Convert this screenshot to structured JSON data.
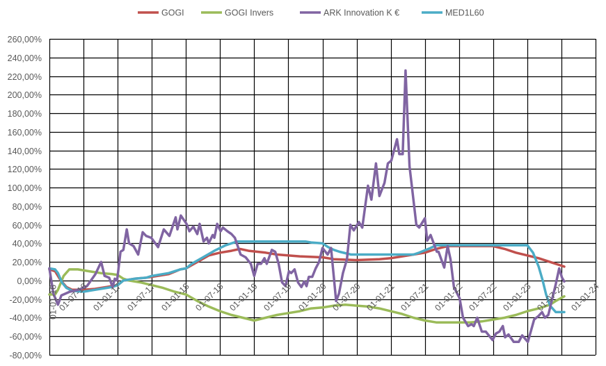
{
  "chart_data": {
    "type": "line",
    "title": "",
    "xlabel": "",
    "ylabel": "",
    "x_unit": "months since 01-01-16",
    "xlim": [
      0,
      96
    ],
    "ylim": [
      -80,
      260
    ],
    "y_step": 20,
    "grid": true,
    "legend_position": "top",
    "x_tick_labels": [
      "01-01-16",
      "01-07-16",
      "01-01-17",
      "01-07-17",
      "01-01-18",
      "01-07-18",
      "01-01-19",
      "01-07-19",
      "01-01-20",
      "01-07-20",
      "01-01-21",
      "01-07-21",
      "01-01-22",
      "01-07-22",
      "01-01-23",
      "01-07-23",
      "01-01-24"
    ],
    "y_tick_labels": [
      "260,00%",
      "240,00%",
      "220,00%",
      "200,00%",
      "180,00%",
      "160,00%",
      "140,00%",
      "120,00%",
      "100,00%",
      "80,00%",
      "60,00%",
      "40,00%",
      "20,00%",
      "0,00%",
      "-20,00%",
      "-40,00%",
      "-60,00%",
      "-80,00%"
    ],
    "series": [
      {
        "name": "GOGI",
        "color": "#C0504D",
        "x": [
          0,
          1,
          2,
          3,
          4,
          6,
          8,
          10,
          12,
          13,
          15,
          17,
          19,
          21,
          23,
          24,
          26,
          28,
          30,
          32,
          33.5,
          35,
          38,
          40,
          44,
          48,
          50,
          54,
          58,
          60,
          62,
          64,
          66,
          68,
          70,
          72,
          78,
          80,
          82,
          84,
          86,
          88,
          90,
          90.5
        ],
        "y": [
          12,
          10,
          0,
          -7,
          -10,
          -10,
          -9,
          -7,
          -5,
          0,
          2,
          3,
          5,
          7,
          12,
          13,
          20,
          27,
          30,
          32,
          34,
          32,
          30,
          28,
          26,
          25,
          23,
          22,
          23,
          24,
          26,
          28,
          30,
          34,
          37,
          37,
          37,
          34,
          30,
          27,
          24,
          20,
          16,
          15
        ]
      },
      {
        "name": "GOGI Invers",
        "color": "#9BBB59",
        "x": [
          0,
          1,
          1.5,
          2.5,
          3.5,
          5,
          7,
          9,
          11,
          12,
          13,
          14,
          16,
          18,
          20,
          22,
          24,
          26,
          28,
          30,
          32,
          34,
          36,
          38,
          40,
          42,
          44,
          46,
          48,
          50,
          52,
          54,
          56,
          58,
          60,
          62,
          64,
          66,
          68,
          72,
          74,
          76,
          78,
          80,
          82,
          84,
          86,
          88,
          89,
          90.5
        ],
        "y": [
          -15,
          -15,
          -10,
          5,
          12,
          12,
          10,
          8,
          7,
          6,
          2,
          0,
          -2,
          -5,
          -8,
          -12,
          -15,
          -22,
          -28,
          -33,
          -37,
          -40,
          -43,
          -40,
          -37,
          -35,
          -33,
          -30,
          -29,
          -27,
          -26,
          -27,
          -28,
          -30,
          -33,
          -36,
          -40,
          -43,
          -45,
          -45,
          -45,
          -44,
          -42,
          -40,
          -37,
          -33,
          -30,
          -26,
          -22,
          -17
        ]
      },
      {
        "name": "ARK Innovation K €",
        "color": "#8064A2",
        "x": [
          0,
          0.7,
          1.5,
          2.1,
          3.6,
          5.1,
          6.6,
          8.1,
          9.1,
          9.7,
          10.5,
          11.1,
          11.5,
          11.9,
          12.5,
          13.0,
          13.6,
          14.0,
          14.8,
          15.6,
          16.4,
          17.0,
          17.9,
          19.1,
          20.1,
          21.1,
          22.2,
          22.5,
          23.1,
          24.1,
          24.6,
          25.3,
          26.0,
          26.4,
          27.1,
          27.7,
          28.0,
          28.7,
          29.0,
          29.5,
          30.1,
          30.5,
          31.3,
          32.0,
          32.6,
          33.6,
          34.5,
          35.4,
          36.0,
          36.6,
          37.2,
          37.8,
          38.2,
          39.1,
          39.7,
          40.3,
          40.9,
          41.5,
          42.1,
          42.5,
          43.1,
          43.7,
          44.3,
          44.8,
          45.2,
          45.6,
          46.2,
          46.8,
          47.4,
          48.0,
          48.9,
          49.5,
          50.4,
          50.9,
          51.6,
          52.3,
          52.9,
          53.5,
          54.4,
          55.0,
          56.0,
          56.6,
          57.4,
          58.0,
          58.9,
          59.5,
          60.1,
          61.1,
          61.5,
          62.1,
          62.6,
          63.3,
          64.5,
          65.0,
          66.0,
          66.4,
          67.0,
          68.1,
          68.4,
          69.4,
          70.0,
          70.5,
          71.1,
          72.1,
          72.7,
          73.6,
          74.2,
          74.6,
          75.2,
          76.0,
          76.7,
          77.9,
          78.5,
          79.1,
          79.7,
          80.1,
          80.7,
          81.6,
          82.5,
          83.1,
          84.1,
          85.2,
          86.0,
          86.6,
          87.1,
          87.7,
          88.4,
          89.0,
          89.6,
          90.1,
          90.5
        ],
        "y": [
          13,
          -14,
          -26,
          -16,
          -12,
          -10,
          -6,
          7,
          20,
          5,
          3,
          -7,
          2,
          0,
          31,
          33,
          55,
          40,
          37,
          28,
          52,
          48,
          46,
          36,
          55,
          48,
          68,
          55,
          70,
          61,
          53,
          58,
          50,
          61,
          42,
          46,
          40,
          49,
          46,
          61,
          53,
          57,
          53,
          50,
          46,
          28,
          25,
          18,
          5,
          18,
          18,
          24,
          18,
          33,
          31,
          18,
          -2,
          -6,
          10,
          8,
          12,
          -2,
          -7,
          -1,
          -6,
          4,
          4,
          13,
          20,
          35,
          28,
          35,
          -22,
          -14,
          8,
          23,
          60,
          54,
          63,
          57,
          102,
          87,
          126,
          91,
          105,
          126,
          129,
          152,
          136,
          136,
          226,
          123,
          60,
          57,
          67,
          43,
          49,
          31,
          31,
          14,
          37,
          23,
          -7,
          -19,
          -40,
          -49,
          -47,
          -49,
          -40,
          -55,
          -55,
          -64,
          -57,
          -55,
          -49,
          -61,
          -58,
          -66,
          -66,
          -59,
          -66,
          -42,
          -38,
          -34,
          -40,
          -37,
          -19,
          -4,
          13,
          3,
          -1
        ]
      },
      {
        "name": "MED1L60",
        "color": "#4BACC6",
        "x": [
          0,
          1,
          1.5,
          2.2,
          3,
          4,
          6,
          8,
          10,
          11,
          12,
          13,
          15,
          17,
          18,
          21,
          23,
          24,
          25,
          27,
          29,
          31,
          33,
          45,
          46,
          48,
          49,
          50,
          51,
          53,
          64,
          65,
          67,
          68,
          84,
          85,
          86,
          86.7,
          87.3,
          88,
          89,
          90.5
        ],
        "y": [
          13,
          12,
          8,
          -2,
          -8,
          -11,
          -12,
          -10,
          -8,
          -7,
          -5,
          0,
          2,
          3,
          5,
          8,
          12,
          13,
          18,
          25,
          32,
          38,
          42,
          42,
          41,
          40,
          36,
          33,
          31,
          28,
          28,
          30,
          35,
          38,
          38,
          30,
          15,
          0,
          -15,
          -27,
          -34,
          -34
        ]
      }
    ]
  }
}
